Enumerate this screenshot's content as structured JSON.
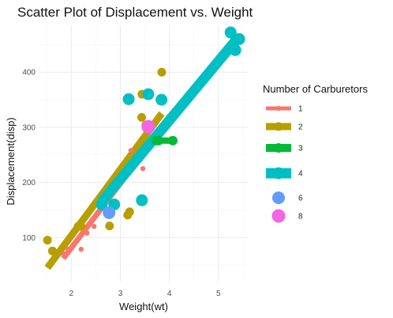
{
  "chart_data": {
    "type": "scatter",
    "title": "Scatter Plot of Displacement vs. Weight",
    "xlabel": "Weight(wt)",
    "ylabel": "Displacement(disp)",
    "xlim": [
      1.35,
      5.6
    ],
    "ylim": [
      20,
      485
    ],
    "xticks": [
      2,
      3,
      4,
      5
    ],
    "yticks": [
      100,
      200,
      300,
      400
    ],
    "grid": true,
    "legend": {
      "title": "Number of Carburetors",
      "placement": "right"
    },
    "series": [
      {
        "name": "1",
        "color": "#F8766D",
        "points": [
          {
            "x": 1.835,
            "y": 71.1
          },
          {
            "x": 1.935,
            "y": 79.0
          },
          {
            "x": 2.2,
            "y": 78.7
          },
          {
            "x": 2.32,
            "y": 108.0
          },
          {
            "x": 2.465,
            "y": 120.1
          },
          {
            "x": 3.215,
            "y": 258.0
          },
          {
            "x": 3.46,
            "y": 225.0
          }
        ],
        "fit": {
          "x1": 1.835,
          "y1": 62,
          "x2": 3.46,
          "y2": 252
        }
      },
      {
        "name": "2",
        "color": "#B79F00",
        "points": [
          {
            "x": 1.513,
            "y": 95.1
          },
          {
            "x": 1.615,
            "y": 75.7
          },
          {
            "x": 2.14,
            "y": 120.3
          },
          {
            "x": 2.2,
            "y": 120.3
          },
          {
            "x": 2.78,
            "y": 121.0
          },
          {
            "x": 3.19,
            "y": 146.7
          },
          {
            "x": 3.15,
            "y": 140.8
          },
          {
            "x": 3.435,
            "y": 318.0
          },
          {
            "x": 3.44,
            "y": 360.0
          },
          {
            "x": 3.52,
            "y": 304.0
          },
          {
            "x": 3.845,
            "y": 400.0
          }
        ],
        "fit": {
          "x1": 1.513,
          "y1": 45,
          "x2": 3.845,
          "y2": 325
        }
      },
      {
        "name": "3",
        "color": "#00BA38",
        "points": [
          {
            "x": 3.73,
            "y": 275.8
          },
          {
            "x": 3.78,
            "y": 275.8
          },
          {
            "x": 4.07,
            "y": 275.8
          }
        ],
        "fit": {
          "x1": 3.73,
          "y1": 275.8,
          "x2": 4.07,
          "y2": 275.8
        }
      },
      {
        "name": "4",
        "color": "#00BFC4",
        "points": [
          {
            "x": 2.62,
            "y": 160.0
          },
          {
            "x": 2.875,
            "y": 160.0
          },
          {
            "x": 3.44,
            "y": 167.6
          },
          {
            "x": 3.17,
            "y": 351.0
          },
          {
            "x": 3.57,
            "y": 360.0
          },
          {
            "x": 3.84,
            "y": 350.0
          },
          {
            "x": 5.25,
            "y": 472.0
          },
          {
            "x": 5.424,
            "y": 460.0
          },
          {
            "x": 5.345,
            "y": 440.0
          }
        ],
        "fit": {
          "x1": 2.62,
          "y1": 165,
          "x2": 5.424,
          "y2": 465
        }
      },
      {
        "name": "6",
        "color": "#619CFF",
        "points": [
          {
            "x": 2.77,
            "y": 145.0
          }
        ]
      },
      {
        "name": "8",
        "color": "#F564E3",
        "points": [
          {
            "x": 3.57,
            "y": 301.0
          }
        ]
      }
    ]
  }
}
